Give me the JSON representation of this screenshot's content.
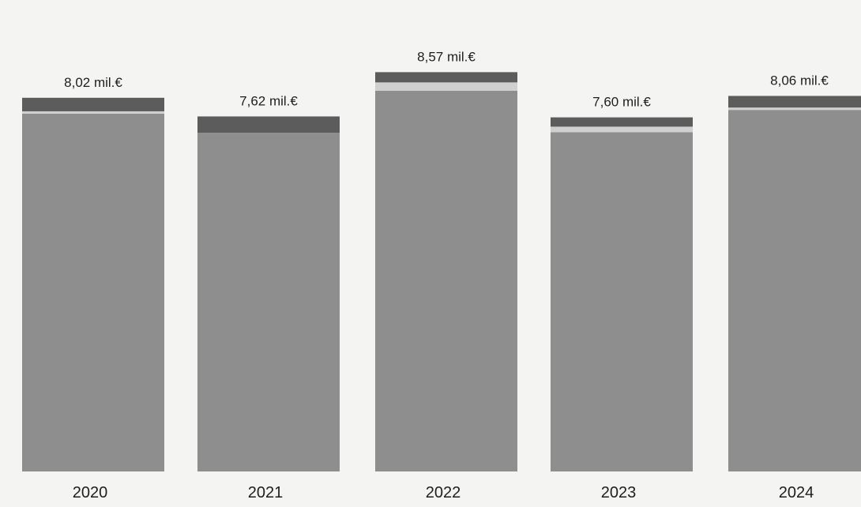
{
  "chart_data": {
    "type": "bar",
    "stacked": true,
    "categories": [
      "2020",
      "2021",
      "2022",
      "2023",
      "2024"
    ],
    "totals": [
      8.02,
      7.62,
      8.57,
      7.6,
      8.06
    ],
    "total_labels": [
      "8,02 mil.€",
      "7,62 mil.€",
      "8,57 mil.€",
      "7,60 mil.€",
      "8,06 mil.€"
    ],
    "series": [
      {
        "values": [
          7.68,
          7.27,
          8.17,
          7.28,
          7.76
        ],
        "color": "#8e8e8e"
      },
      {
        "values": [
          0.05,
          0.0,
          0.18,
          0.12,
          0.05
        ],
        "color": "#d0d0d0"
      },
      {
        "values": [
          0.29,
          0.35,
          0.22,
          0.2,
          0.25
        ],
        "color": "#5c5c5c"
      }
    ],
    "grid": false,
    "legend": "none"
  }
}
